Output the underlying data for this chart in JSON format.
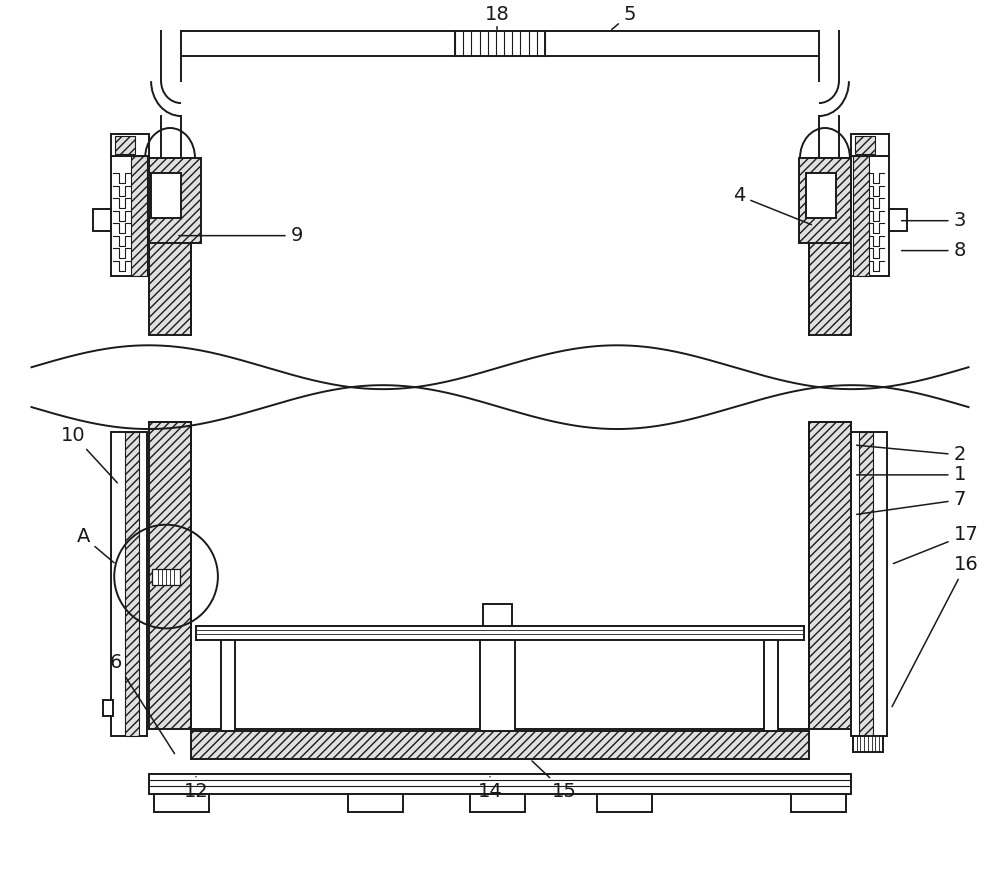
{
  "bg_color": "#ffffff",
  "line_color": "#1a1a1a",
  "figsize": [
    10,
    8.75
  ],
  "dpi": 100,
  "lw_main": 1.4,
  "lw_thin": 0.8,
  "hatch_fc": "#d8d8d8"
}
